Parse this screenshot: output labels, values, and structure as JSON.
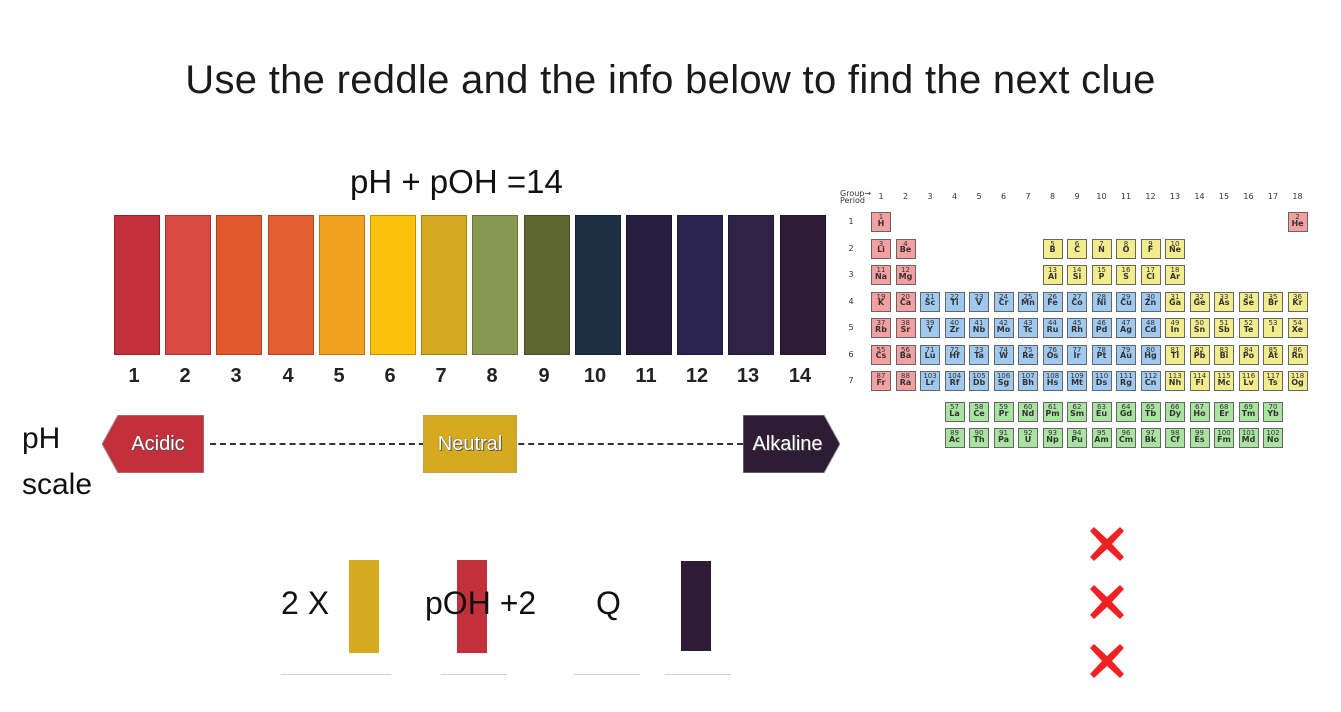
{
  "title": "Use the reddle and the info below to find the next clue",
  "formula": "pH + pOH =14",
  "ph_scale": {
    "label_line1": "pH",
    "label_line2": "scale",
    "colors": [
      "#c3303b",
      "#d94a45",
      "#e2592e",
      "#e45f30",
      "#f1a020",
      "#fcc10c",
      "#d5aa1e",
      "#879851",
      "#5f6731",
      "#1b3043",
      "#251e3e",
      "#2c2450",
      "#302247",
      "#2e1c34"
    ],
    "numbers": [
      "1",
      "2",
      "3",
      "4",
      "5",
      "6",
      "7",
      "8",
      "9",
      "10",
      "11",
      "12",
      "13",
      "14"
    ],
    "acidic": "Acidic",
    "neutral": "Neutral",
    "alkaline": "Alkaline",
    "acidic_color": "#c3303b",
    "neutral_color": "#d5aa1e",
    "alkaline_color": "#2e1c34"
  },
  "equation": {
    "term1": "2 X",
    "term2": "pOH +2",
    "term3": "Q",
    "color1": "#d5aa1e",
    "color2": "#c3303b",
    "color3": "#2e1c34"
  },
  "x_marks_color": "#ee2222",
  "periodic_table": {
    "group_header": "Group→",
    "period_header": "Period",
    "groups": [
      "1",
      "2",
      "3",
      "4",
      "5",
      "6",
      "7",
      "8",
      "9",
      "10",
      "11",
      "12",
      "13",
      "14",
      "15",
      "16",
      "17",
      "18"
    ],
    "periods": [
      "1",
      "2",
      "3",
      "4",
      "5",
      "6",
      "7"
    ],
    "colors": {
      "s": "#f4a0a0",
      "d": "#9fc9ef",
      "p": "#f3ec8c",
      "f": "#a8e3a0"
    },
    "elements": [
      {
        "z": "1",
        "s": "H",
        "b": "s"
      },
      {
        "z": "2",
        "s": "He",
        "b": "s"
      },
      {
        "z": "3",
        "s": "Li",
        "b": "s"
      },
      {
        "z": "4",
        "s": "Be",
        "b": "s"
      },
      {
        "z": "5",
        "s": "B",
        "b": "p"
      },
      {
        "z": "6",
        "s": "C",
        "b": "p"
      },
      {
        "z": "7",
        "s": "N",
        "b": "p"
      },
      {
        "z": "8",
        "s": "O",
        "b": "p"
      },
      {
        "z": "9",
        "s": "F",
        "b": "p"
      },
      {
        "z": "10",
        "s": "Ne",
        "b": "p"
      },
      {
        "z": "11",
        "s": "Na",
        "b": "s"
      },
      {
        "z": "12",
        "s": "Mg",
        "b": "s"
      },
      {
        "z": "13",
        "s": "Al",
        "b": "p"
      },
      {
        "z": "14",
        "s": "Si",
        "b": "p"
      },
      {
        "z": "15",
        "s": "P",
        "b": "p"
      },
      {
        "z": "16",
        "s": "S",
        "b": "p"
      },
      {
        "z": "17",
        "s": "Cl",
        "b": "p"
      },
      {
        "z": "18",
        "s": "Ar",
        "b": "p"
      },
      {
        "z": "19",
        "s": "K",
        "b": "s"
      },
      {
        "z": "20",
        "s": "Ca",
        "b": "s"
      },
      {
        "z": "21",
        "s": "Sc",
        "b": "d"
      },
      {
        "z": "22",
        "s": "Ti",
        "b": "d"
      },
      {
        "z": "23",
        "s": "V",
        "b": "d"
      },
      {
        "z": "24",
        "s": "Cr",
        "b": "d"
      },
      {
        "z": "25",
        "s": "Mn",
        "b": "d"
      },
      {
        "z": "26",
        "s": "Fe",
        "b": "d"
      },
      {
        "z": "27",
        "s": "Co",
        "b": "d"
      },
      {
        "z": "28",
        "s": "Ni",
        "b": "d"
      },
      {
        "z": "29",
        "s": "Cu",
        "b": "d"
      },
      {
        "z": "30",
        "s": "Zn",
        "b": "d"
      },
      {
        "z": "31",
        "s": "Ga",
        "b": "p"
      },
      {
        "z": "32",
        "s": "Ge",
        "b": "p"
      },
      {
        "z": "33",
        "s": "As",
        "b": "p"
      },
      {
        "z": "34",
        "s": "Se",
        "b": "p"
      },
      {
        "z": "35",
        "s": "Br",
        "b": "p"
      },
      {
        "z": "36",
        "s": "Kr",
        "b": "p"
      },
      {
        "z": "37",
        "s": "Rb",
        "b": "s"
      },
      {
        "z": "38",
        "s": "Sr",
        "b": "s"
      },
      {
        "z": "39",
        "s": "Y",
        "b": "d"
      },
      {
        "z": "40",
        "s": "Zr",
        "b": "d"
      },
      {
        "z": "41",
        "s": "Nb",
        "b": "d"
      },
      {
        "z": "42",
        "s": "Mo",
        "b": "d"
      },
      {
        "z": "43",
        "s": "Tc",
        "b": "d"
      },
      {
        "z": "44",
        "s": "Ru",
        "b": "d"
      },
      {
        "z": "45",
        "s": "Rh",
        "b": "d"
      },
      {
        "z": "46",
        "s": "Pd",
        "b": "d"
      },
      {
        "z": "47",
        "s": "Ag",
        "b": "d"
      },
      {
        "z": "48",
        "s": "Cd",
        "b": "d"
      },
      {
        "z": "49",
        "s": "In",
        "b": "p"
      },
      {
        "z": "50",
        "s": "Sn",
        "b": "p"
      },
      {
        "z": "51",
        "s": "Sb",
        "b": "p"
      },
      {
        "z": "52",
        "s": "Te",
        "b": "p"
      },
      {
        "z": "53",
        "s": "I",
        "b": "p"
      },
      {
        "z": "54",
        "s": "Xe",
        "b": "p"
      },
      {
        "z": "55",
        "s": "Cs",
        "b": "s"
      },
      {
        "z": "56",
        "s": "Ba",
        "b": "s"
      },
      {
        "z": "71",
        "s": "Lu",
        "b": "d"
      },
      {
        "z": "72",
        "s": "Hf",
        "b": "d"
      },
      {
        "z": "73",
        "s": "Ta",
        "b": "d"
      },
      {
        "z": "74",
        "s": "W",
        "b": "d"
      },
      {
        "z": "75",
        "s": "Re",
        "b": "d"
      },
      {
        "z": "76",
        "s": "Os",
        "b": "d"
      },
      {
        "z": "77",
        "s": "Ir",
        "b": "d"
      },
      {
        "z": "78",
        "s": "Pt",
        "b": "d"
      },
      {
        "z": "79",
        "s": "Au",
        "b": "d"
      },
      {
        "z": "80",
        "s": "Hg",
        "b": "d"
      },
      {
        "z": "81",
        "s": "Tl",
        "b": "p"
      },
      {
        "z": "82",
        "s": "Pb",
        "b": "p"
      },
      {
        "z": "83",
        "s": "Bi",
        "b": "p"
      },
      {
        "z": "84",
        "s": "Po",
        "b": "p"
      },
      {
        "z": "85",
        "s": "At",
        "b": "p"
      },
      {
        "z": "86",
        "s": "Rn",
        "b": "p"
      },
      {
        "z": "87",
        "s": "Fr",
        "b": "s"
      },
      {
        "z": "88",
        "s": "Ra",
        "b": "s"
      },
      {
        "z": "103",
        "s": "Lr",
        "b": "d"
      },
      {
        "z": "104",
        "s": "Rf",
        "b": "d"
      },
      {
        "z": "105",
        "s": "Db",
        "b": "d"
      },
      {
        "z": "106",
        "s": "Sg",
        "b": "d"
      },
      {
        "z": "107",
        "s": "Bh",
        "b": "d"
      },
      {
        "z": "108",
        "s": "Hs",
        "b": "d"
      },
      {
        "z": "109",
        "s": "Mt",
        "b": "d"
      },
      {
        "z": "110",
        "s": "Ds",
        "b": "d"
      },
      {
        "z": "111",
        "s": "Rg",
        "b": "d"
      },
      {
        "z": "112",
        "s": "Cn",
        "b": "d"
      },
      {
        "z": "113",
        "s": "Nh",
        "b": "p"
      },
      {
        "z": "114",
        "s": "Fl",
        "b": "p"
      },
      {
        "z": "115",
        "s": "Mc",
        "b": "p"
      },
      {
        "z": "116",
        "s": "Lv",
        "b": "p"
      },
      {
        "z": "117",
        "s": "Ts",
        "b": "p"
      },
      {
        "z": "118",
        "s": "Og",
        "b": "p"
      },
      {
        "z": "57",
        "s": "La",
        "b": "f"
      },
      {
        "z": "58",
        "s": "Ce",
        "b": "f"
      },
      {
        "z": "59",
        "s": "Pr",
        "b": "f"
      },
      {
        "z": "60",
        "s": "Nd",
        "b": "f"
      },
      {
        "z": "61",
        "s": "Pm",
        "b": "f"
      },
      {
        "z": "62",
        "s": "Sm",
        "b": "f"
      },
      {
        "z": "63",
        "s": "Eu",
        "b": "f"
      },
      {
        "z": "64",
        "s": "Gd",
        "b": "f"
      },
      {
        "z": "65",
        "s": "Tb",
        "b": "f"
      },
      {
        "z": "66",
        "s": "Dy",
        "b": "f"
      },
      {
        "z": "67",
        "s": "Ho",
        "b": "f"
      },
      {
        "z": "68",
        "s": "Er",
        "b": "f"
      },
      {
        "z": "69",
        "s": "Tm",
        "b": "f"
      },
      {
        "z": "70",
        "s": "Yb",
        "b": "f"
      },
      {
        "z": "89",
        "s": "Ac",
        "b": "f"
      },
      {
        "z": "90",
        "s": "Th",
        "b": "f"
      },
      {
        "z": "91",
        "s": "Pa",
        "b": "f"
      },
      {
        "z": "92",
        "s": "U",
        "b": "f"
      },
      {
        "z": "93",
        "s": "Np",
        "b": "f"
      },
      {
        "z": "94",
        "s": "Pu",
        "b": "f"
      },
      {
        "z": "95",
        "s": "Am",
        "b": "f"
      },
      {
        "z": "96",
        "s": "Cm",
        "b": "f"
      },
      {
        "z": "97",
        "s": "Bk",
        "b": "f"
      },
      {
        "z": "98",
        "s": "Cf",
        "b": "f"
      },
      {
        "z": "99",
        "s": "Es",
        "b": "f"
      },
      {
        "z": "100",
        "s": "Fm",
        "b": "f"
      },
      {
        "z": "101",
        "s": "Md",
        "b": "f"
      },
      {
        "z": "102",
        "s": "No",
        "b": "f"
      }
    ]
  }
}
